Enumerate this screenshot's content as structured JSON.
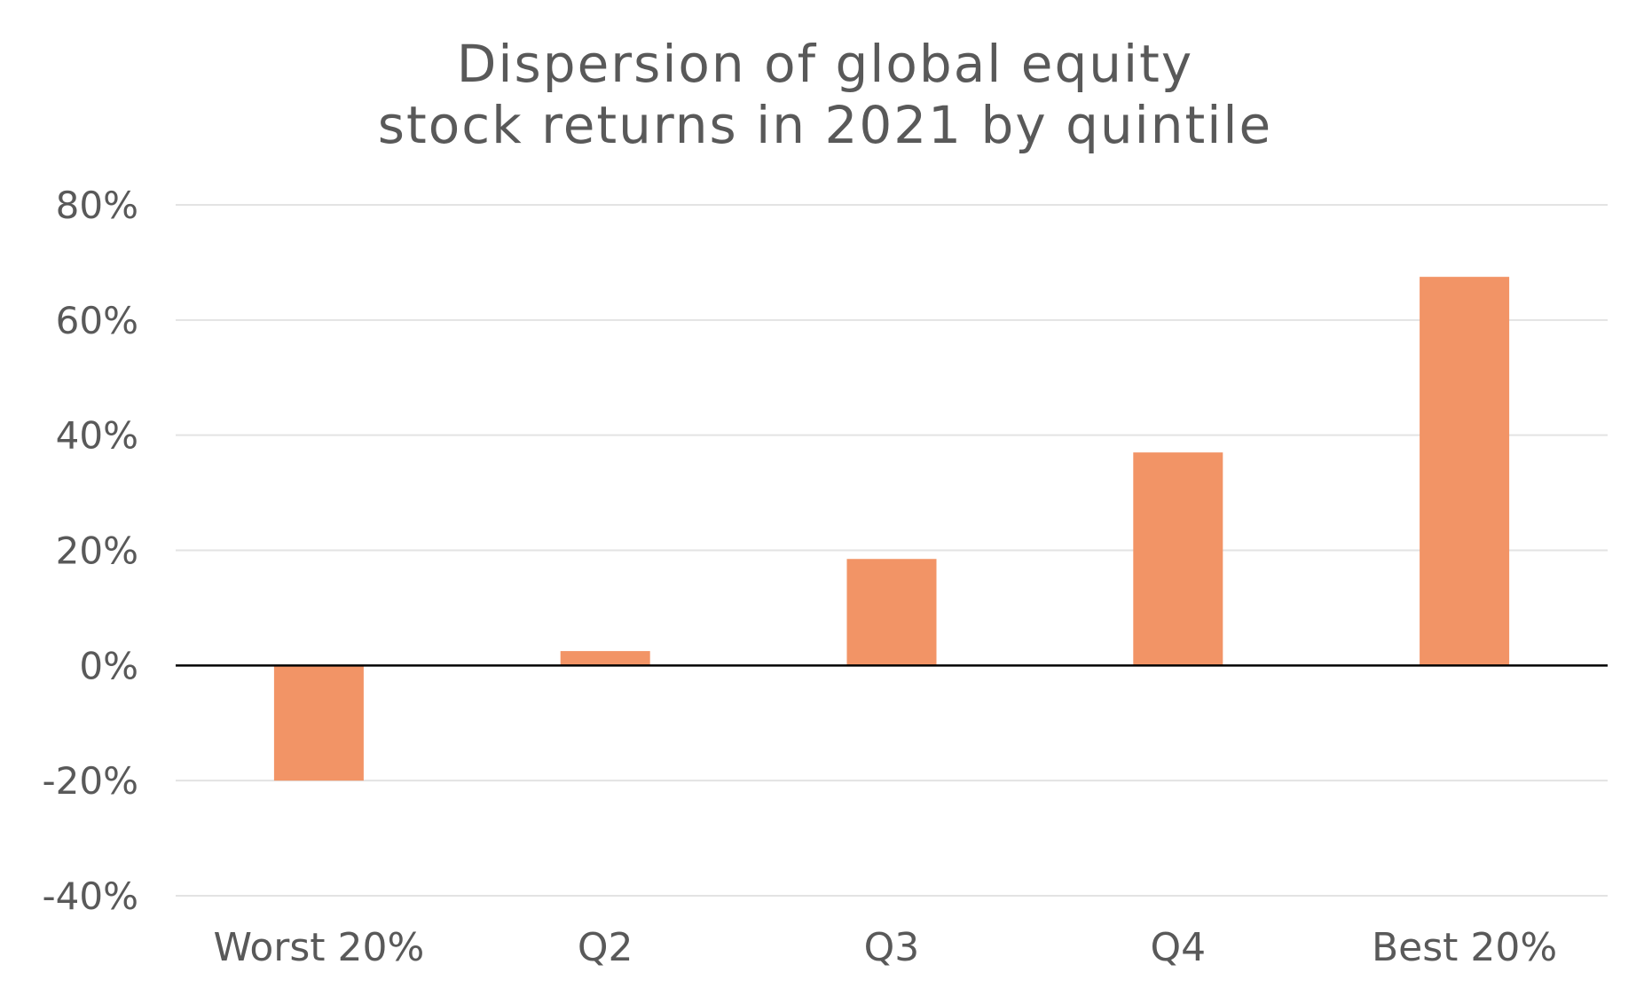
{
  "chart_data": {
    "type": "bar",
    "title_lines": [
      "Dispersion of global equity",
      "stock returns in 2021 by quintile"
    ],
    "categories": [
      "Worst 20%",
      "Q2",
      "Q3",
      "Q4",
      "Best 20%"
    ],
    "values": [
      -20,
      2.5,
      18.5,
      37,
      67.5
    ],
    "value_unit": "%",
    "ylim": [
      -40,
      80
    ],
    "yticks": [
      -40,
      -20,
      0,
      20,
      40,
      60,
      80
    ],
    "ytick_labels": [
      "-40%",
      "-20%",
      "0%",
      "20%",
      "40%",
      "60%",
      "80%"
    ],
    "xlabel": "",
    "ylabel": "",
    "grid": true,
    "legend": "none",
    "bar_color": "#f29466"
  }
}
